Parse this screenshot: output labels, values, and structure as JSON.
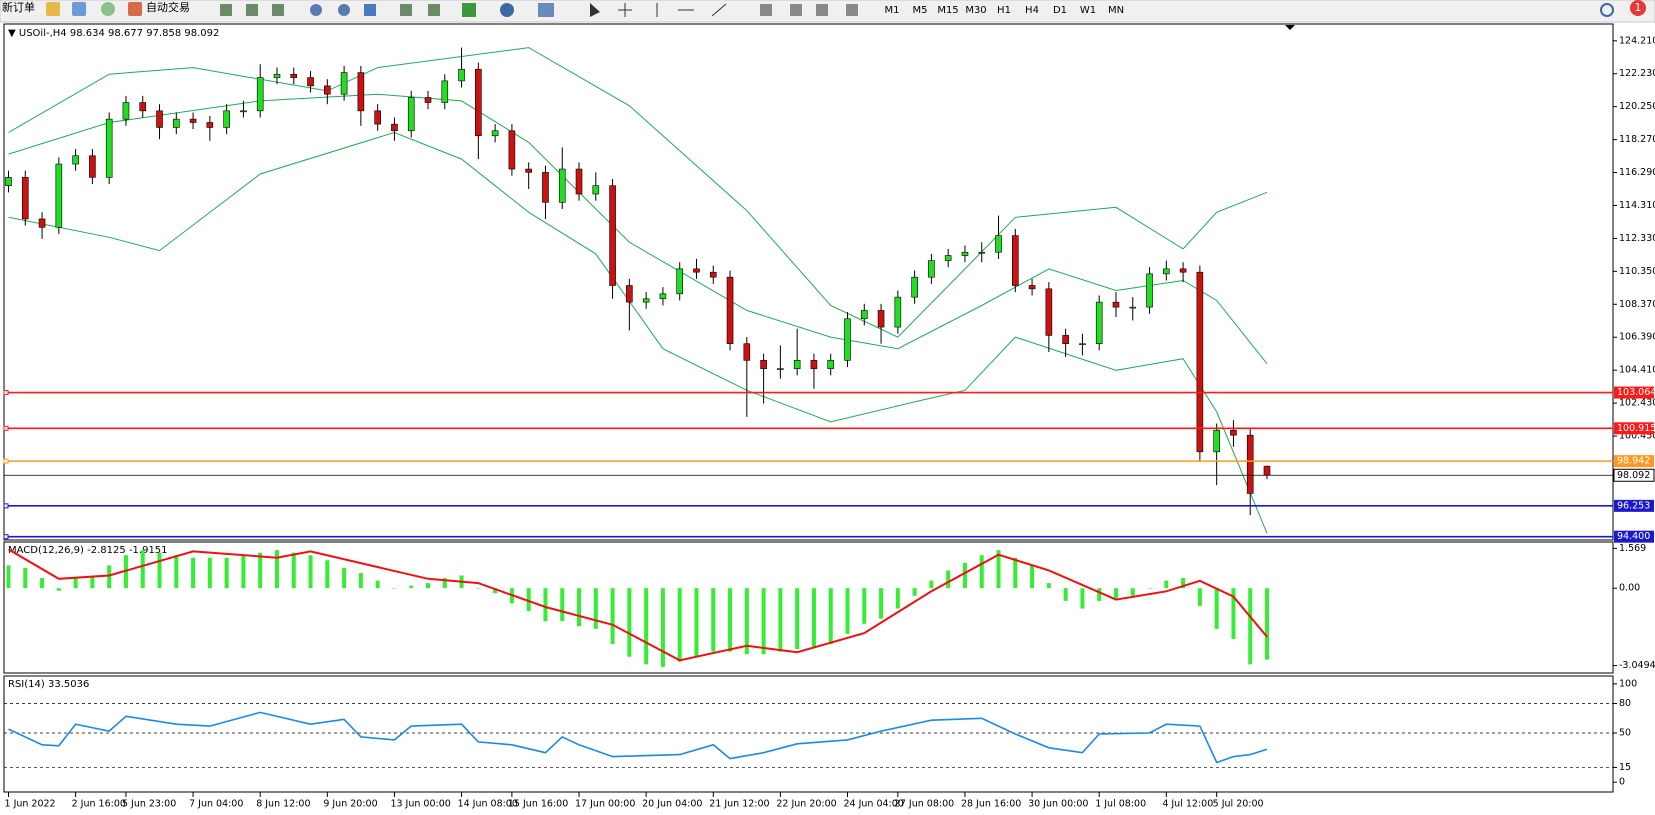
{
  "toolbar": {
    "new_order": "新订单",
    "auto_trade": "自动交易",
    "timeframes": [
      "M1",
      "M5",
      "M15",
      "M30",
      "H1",
      "H4",
      "D1",
      "W1",
      "MN"
    ],
    "badge": "1"
  },
  "chart_data": [
    {
      "type": "candlestick",
      "title": "USOil-,H4",
      "categories": [
        "1 Jun 2022",
        null,
        null,
        null,
        "2 Jun 16:00",
        null,
        null,
        "5 Jun 23:00",
        null,
        null,
        null,
        "7 Jun 04:00",
        null,
        null,
        null,
        "8 Jun 12:00",
        null,
        null,
        null,
        "9 Jun 20:00",
        null,
        null,
        null,
        "13 Jun 00:00",
        null,
        null,
        null,
        "14 Jun 08:00",
        null,
        null,
        "15 Jun 16:00",
        null,
        null,
        null,
        "17 Jun 00:00",
        null,
        null,
        null,
        "20 Jun 04:00",
        null,
        null,
        null,
        "21 Jun 12:00",
        null,
        null,
        null,
        "22 Jun 20:00",
        null,
        null,
        null,
        "24 Jun 04:00",
        null,
        null,
        "27 Jun 08:00",
        null,
        null,
        null,
        "28 Jun 16:00",
        null,
        null,
        null,
        "30 Jun 00:00",
        null,
        null,
        null,
        "1 Jul 08:00",
        null,
        null,
        null,
        "4 Jul 12:00",
        null,
        null,
        "5 Jul 20:00",
        null,
        null,
        null
      ],
      "open": [
        115.5,
        116.0,
        113.5,
        113.0,
        116.8,
        117.3,
        116.0,
        119.5,
        120.5,
        120.0,
        119.0,
        119.5,
        119.3,
        119.0,
        120.0,
        120.0,
        122.0,
        122.2,
        122.0,
        121.5,
        121.0,
        122.3,
        120.0,
        119.2,
        118.8,
        120.8,
        120.5,
        121.8,
        122.5,
        118.5,
        118.8,
        116.5,
        116.3,
        114.5,
        116.5,
        115.0,
        115.5,
        109.5,
        108.5,
        108.7,
        109.0,
        110.5,
        110.3,
        110.0,
        106.0,
        105.0,
        104.5,
        104.5,
        105.0,
        104.5,
        105.0,
        107.5,
        108.0,
        107.0,
        108.8,
        110.0,
        111.0,
        111.3,
        111.5,
        111.5,
        112.5,
        109.5,
        109.3,
        106.5,
        106.0,
        106.0,
        108.5,
        108.2,
        108.2,
        110.2,
        110.5,
        110.3,
        99.5,
        100.8,
        100.5,
        98.634
      ],
      "high": [
        116.4,
        116.4,
        113.9,
        117.2,
        117.7,
        117.7,
        119.9,
        120.9,
        120.9,
        120.4,
        119.9,
        119.9,
        119.7,
        120.4,
        120.6,
        122.8,
        122.6,
        122.6,
        122.4,
        121.9,
        122.7,
        122.7,
        120.4,
        119.6,
        121.2,
        121.2,
        122.2,
        123.8,
        122.9,
        119.2,
        119.2,
        116.9,
        116.7,
        117.8,
        116.9,
        116.3,
        115.9,
        109.9,
        109.1,
        109.4,
        110.9,
        111.1,
        110.7,
        110.4,
        106.4,
        105.4,
        105.9,
        106.9,
        105.4,
        105.4,
        107.9,
        108.4,
        108.4,
        109.2,
        110.4,
        111.4,
        111.7,
        111.9,
        112.1,
        113.7,
        112.9,
        109.9,
        109.7,
        106.9,
        106.6,
        108.9,
        109.1,
        108.8,
        110.6,
        111.0,
        110.9,
        110.7,
        101.2,
        101.4,
        100.9,
        98.677
      ],
      "low": [
        115.1,
        113.1,
        112.3,
        112.6,
        116.4,
        115.6,
        115.6,
        119.1,
        119.6,
        118.3,
        118.6,
        118.9,
        118.2,
        118.6,
        119.6,
        119.6,
        121.6,
        121.6,
        121.1,
        120.4,
        120.6,
        119.1,
        118.8,
        118.2,
        118.4,
        120.1,
        120.1,
        121.4,
        117.1,
        118.1,
        116.1,
        115.3,
        113.5,
        114.1,
        114.6,
        114.6,
        108.7,
        106.8,
        108.1,
        108.3,
        108.6,
        109.9,
        109.6,
        105.6,
        101.6,
        102.4,
        103.9,
        104.1,
        103.3,
        104.1,
        104.6,
        107.1,
        106.0,
        106.6,
        108.4,
        109.6,
        110.6,
        110.9,
        110.9,
        111.1,
        109.1,
        108.9,
        105.5,
        105.2,
        105.3,
        105.6,
        107.6,
        107.4,
        107.8,
        109.8,
        109.7,
        98.9,
        97.5,
        99.8,
        95.7,
        97.858
      ],
      "close": [
        116.0,
        113.5,
        113.0,
        116.8,
        117.3,
        116.0,
        119.5,
        120.5,
        120.0,
        119.0,
        119.5,
        119.3,
        119.0,
        120.0,
        120.0,
        122.0,
        122.2,
        122.0,
        121.5,
        121.0,
        122.3,
        120.0,
        119.2,
        118.8,
        120.8,
        120.5,
        121.8,
        122.5,
        118.5,
        118.8,
        116.5,
        116.3,
        114.5,
        116.5,
        115.0,
        115.5,
        109.5,
        108.5,
        108.7,
        109.0,
        110.5,
        110.3,
        110.0,
        106.0,
        105.0,
        104.5,
        104.5,
        105.0,
        104.5,
        105.0,
        107.5,
        108.0,
        107.0,
        108.8,
        110.0,
        111.0,
        111.3,
        111.5,
        111.5,
        112.5,
        109.5,
        109.3,
        106.5,
        106.0,
        106.0,
        108.5,
        108.2,
        108.2,
        110.2,
        110.5,
        110.3,
        99.5,
        100.8,
        100.5,
        97.0,
        98.092
      ],
      "up_color": "#22dd22",
      "down_color": "#cc1111",
      "bands": {
        "color": "#22aa55",
        "upper": {
          "x": [
            0,
            6,
            11,
            19,
            22,
            31,
            37,
            44,
            49,
            53,
            57,
            60,
            66,
            70,
            72,
            75
          ],
          "values": [
            118.7,
            122.2,
            122.6,
            121.2,
            122.6,
            123.8,
            120.3,
            114.0,
            108.3,
            106.4,
            110.5,
            113.6,
            114.2,
            111.7,
            113.9,
            115.1
          ]
        },
        "middle": {
          "x": [
            0,
            6,
            15,
            22,
            27,
            31,
            37,
            44,
            49,
            53,
            58,
            62,
            66,
            70,
            72,
            75
          ],
          "values": [
            117.4,
            119.3,
            120.6,
            121.0,
            120.6,
            118.1,
            112.1,
            108.0,
            106.4,
            105.7,
            108.3,
            110.5,
            109.2,
            109.8,
            108.6,
            104.8
          ]
        },
        "lower": {
          "x": [
            0,
            6,
            9,
            15,
            23,
            27,
            31,
            35,
            39,
            44,
            49,
            54,
            57,
            60,
            66,
            70,
            72,
            75
          ],
          "values": [
            113.6,
            112.4,
            111.6,
            116.2,
            118.7,
            117.1,
            113.9,
            111.4,
            105.7,
            103.2,
            101.3,
            102.5,
            103.2,
            106.4,
            104.4,
            105.1,
            101.9,
            94.6
          ]
        }
      },
      "levels": [
        {
          "value": 103.064,
          "color": "#ff1a1a"
        },
        {
          "value": 100.915,
          "color": "#ff1a1a"
        },
        {
          "value": 98.942,
          "color": "#ff9922"
        },
        {
          "value": 96.253,
          "color": "#1a1acc"
        },
        {
          "value": 94.4,
          "label": "94.400",
          "color": "#1a1acc"
        }
      ],
      "ylim": [
        94.2,
        125.22
      ],
      "yticks": [
        {
          "value": 124.21,
          "label": "124.210"
        },
        {
          "value": 122.23,
          "label": "122.230"
        },
        {
          "value": 120.25,
          "label": "120.250"
        },
        {
          "value": 118.27,
          "label": "118.270"
        },
        {
          "value": 116.29,
          "label": "116.290"
        },
        {
          "value": 114.31,
          "label": "114.310"
        },
        {
          "value": 112.33,
          "label": "112.330"
        },
        {
          "value": 110.35,
          "label": "110.350"
        },
        {
          "value": 108.37,
          "label": "108.370"
        },
        {
          "value": 106.39,
          "label": "106.390"
        },
        {
          "value": 104.41,
          "label": "104.410"
        },
        {
          "value": 102.43,
          "label": "102.430"
        },
        {
          "value": 100.45,
          "label": "100.450"
        }
      ]
    },
    {
      "type": "macd",
      "title": "MACD(12,26,9)",
      "histogram": {
        "color": "#33ee33",
        "values": [
          0.9,
          0.8,
          0.4,
          -0.1,
          0.4,
          0.5,
          0.9,
          1.3,
          1.5,
          1.4,
          1.3,
          1.2,
          1.2,
          1.2,
          1.3,
          1.4,
          1.5,
          1.4,
          1.3,
          1.1,
          0.8,
          0.6,
          0.3,
          0.0,
          0.1,
          0.2,
          0.4,
          0.5,
          0.0,
          -0.2,
          -0.6,
          -0.9,
          -1.3,
          -1.3,
          -1.5,
          -1.6,
          -2.2,
          -2.7,
          -3.0,
          -3.1,
          -2.9,
          -2.7,
          -2.5,
          -2.5,
          -2.6,
          -2.6,
          -2.5,
          -2.4,
          -2.3,
          -2.2,
          -1.8,
          -1.4,
          -1.2,
          -0.8,
          -0.3,
          0.3,
          0.7,
          1.0,
          1.3,
          1.5,
          1.2,
          0.9,
          0.2,
          -0.5,
          -0.8,
          -0.5,
          -0.4,
          -0.3,
          0.0,
          0.3,
          0.4,
          -0.7,
          -1.6,
          -2.0,
          -3.0,
          -2.8125
        ]
      },
      "signal": {
        "color": "#ee1111",
        "x": [
          0,
          3,
          6,
          11,
          16,
          18,
          25,
          28,
          32,
          36,
          40,
          44,
          47,
          51,
          55,
          59,
          62,
          66,
          69,
          71,
          73,
          75
        ],
        "values": [
          1.53,
          0.37,
          0.5,
          1.45,
          1.2,
          1.45,
          0.37,
          0.2,
          -0.74,
          -1.44,
          -2.84,
          -2.27,
          -2.52,
          -1.77,
          -0.12,
          1.32,
          0.7,
          -0.45,
          -0.12,
          0.29,
          -0.33,
          -1.9151
        ]
      },
      "ylim": [
        -3.34,
        1.82
      ],
      "yticks": [
        1.569,
        {
          "value": 0,
          "label": "0.00"
        },
        -3.0494
      ]
    },
    {
      "type": "rsi",
      "title": "RSI(14)",
      "color": "#1e88e5",
      "x": [
        0,
        2,
        3,
        4,
        6,
        7,
        10,
        12,
        15,
        18,
        20,
        21,
        23,
        24,
        27,
        28,
        30,
        32,
        33,
        34,
        36,
        40,
        42,
        43,
        45,
        47,
        50,
        52,
        55,
        58,
        60,
        62,
        64,
        65,
        68,
        69,
        71,
        72,
        73,
        74,
        75
      ],
      "values": [
        54,
        38,
        37,
        59,
        52,
        67,
        59,
        57,
        71,
        59,
        64,
        46,
        43,
        57,
        59,
        41,
        38,
        30,
        46,
        38,
        26,
        28,
        38,
        24,
        30,
        39,
        43,
        52,
        63,
        65,
        49,
        35,
        30,
        49,
        50,
        59,
        57,
        20,
        26,
        28,
        33.5036
      ],
      "levels": [
        80,
        50,
        15
      ],
      "ylim": [
        -10,
        108
      ],
      "yticks": [
        100,
        80,
        50,
        15,
        0
      ]
    }
  ]
}
